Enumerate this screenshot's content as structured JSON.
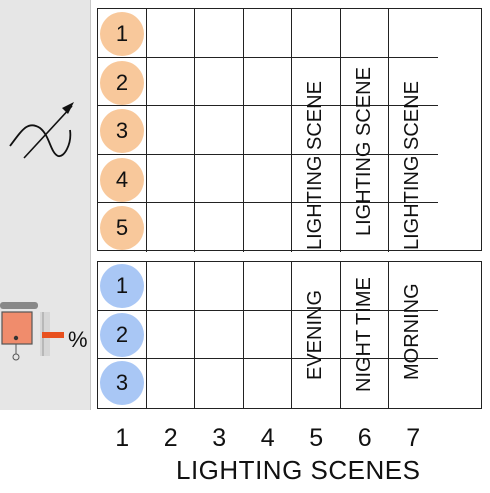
{
  "rows_top": [
    "1",
    "2",
    "3",
    "4",
    "5"
  ],
  "rows_bottom": [
    "1",
    "2",
    "3"
  ],
  "columns": [
    "1",
    "2",
    "3",
    "4",
    "5",
    "6",
    "7"
  ],
  "scene_labels_top": [
    "LIGHTING SCENE",
    "LIGHTING SCENE",
    "LIGHTING SCENE"
  ],
  "scene_labels_bottom": [
    "EVENING",
    "NIGHT TIME",
    "MORNING"
  ],
  "axis_title": "LIGHTING SCENES",
  "percent_symbol": "%",
  "icons": {
    "curve": "dimmer-curve-arrow-icon",
    "shade": "window-shade-icon"
  },
  "colors": {
    "orange": "#f8c89b",
    "blue": "#a9c7f5",
    "shade": "#f08c6c",
    "dash": "#e8501e"
  }
}
